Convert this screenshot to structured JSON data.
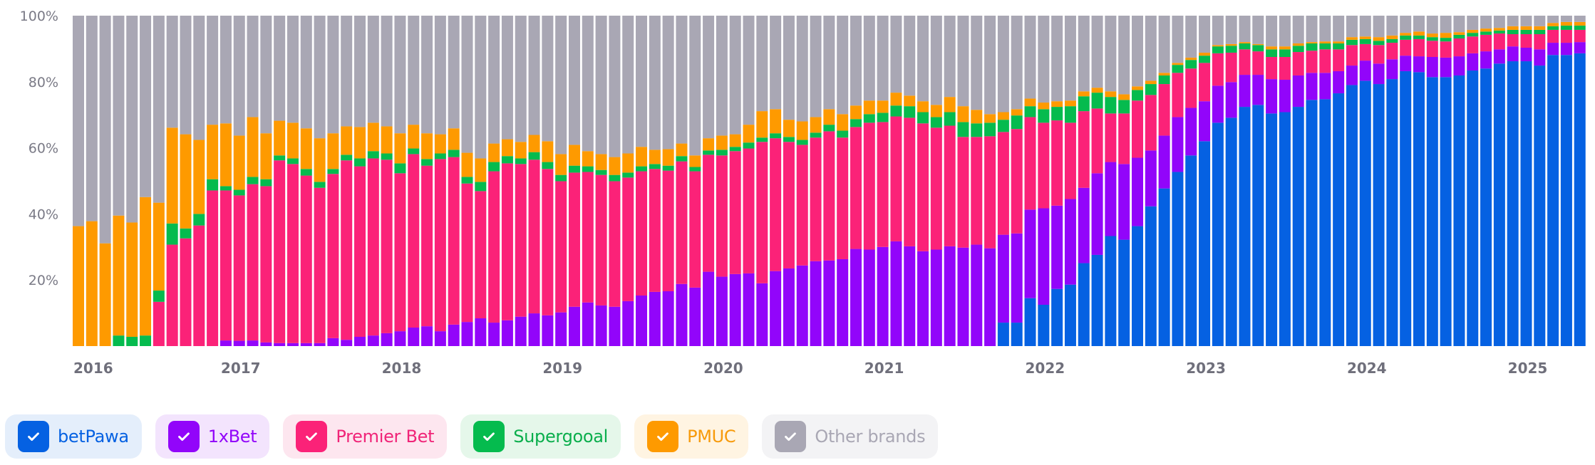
{
  "chart_data": {
    "type": "bar",
    "stacked": true,
    "normalized": true,
    "title": "",
    "xlabel": "",
    "ylabel": "",
    "ylim": [
      0,
      100
    ],
    "grid": false,
    "legend_position": "bottom-left",
    "y_ticks": [
      "20%",
      "40%",
      "60%",
      "80%",
      "100%"
    ],
    "y_tick_values": [
      20,
      40,
      60,
      80,
      100
    ],
    "x_ticks": [
      {
        "label": "2016",
        "index": 0
      },
      {
        "label": "2017",
        "index": 11
      },
      {
        "label": "2018",
        "index": 23
      },
      {
        "label": "2019",
        "index": 35
      },
      {
        "label": "2020",
        "index": 47
      },
      {
        "label": "2021",
        "index": 59
      },
      {
        "label": "2022",
        "index": 71
      },
      {
        "label": "2023",
        "index": 83
      },
      {
        "label": "2024",
        "index": 95
      },
      {
        "label": "2025",
        "index": 107
      }
    ],
    "categories": [
      "2016-02",
      "2016-03",
      "2016-04",
      "2016-05",
      "2016-06",
      "2016-07",
      "2016-08",
      "2016-09",
      "2016-10",
      "2016-11",
      "2016-12",
      "2017-01",
      "2017-02",
      "2017-03",
      "2017-04",
      "2017-05",
      "2017-06",
      "2017-07",
      "2017-08",
      "2017-09",
      "2017-10",
      "2017-11",
      "2017-12",
      "2018-01",
      "2018-02",
      "2018-03",
      "2018-04",
      "2018-05",
      "2018-06",
      "2018-07",
      "2018-08",
      "2018-09",
      "2018-10",
      "2018-11",
      "2018-12",
      "2019-01",
      "2019-02",
      "2019-03",
      "2019-04",
      "2019-05",
      "2019-06",
      "2019-07",
      "2019-08",
      "2019-09",
      "2019-10",
      "2019-11",
      "2019-12",
      "2020-01",
      "2020-02",
      "2020-03",
      "2020-04",
      "2020-05",
      "2020-06",
      "2020-07",
      "2020-08",
      "2020-09",
      "2020-10",
      "2020-11",
      "2020-12",
      "2021-01",
      "2021-02",
      "2021-03",
      "2021-04",
      "2021-05",
      "2021-06",
      "2021-07",
      "2021-08",
      "2021-09",
      "2021-10",
      "2021-11",
      "2021-12",
      "2022-01",
      "2022-02",
      "2022-03",
      "2022-04",
      "2022-05",
      "2022-06",
      "2022-07",
      "2022-08",
      "2022-09",
      "2022-10",
      "2022-11",
      "2022-12",
      "2023-01",
      "2023-02",
      "2023-03",
      "2023-04",
      "2023-05",
      "2023-06",
      "2023-07",
      "2023-08",
      "2023-09",
      "2023-10",
      "2023-11",
      "2023-12",
      "2024-01",
      "2024-02",
      "2024-03",
      "2024-04",
      "2024-05",
      "2024-06",
      "2024-07",
      "2024-08",
      "2024-09",
      "2024-10",
      "2024-11",
      "2024-12",
      "2025-01",
      "2025-02",
      "2025-03",
      "2025-04",
      "2025-05",
      "2025-06"
    ],
    "series": [
      {
        "name": "betPawa",
        "color": "#0561e2",
        "values": [
          0,
          0,
          0,
          0,
          0,
          0,
          0,
          0,
          0,
          0,
          0,
          0,
          0,
          0,
          0,
          0,
          0,
          0,
          0,
          0,
          0,
          0,
          0,
          0,
          0,
          0,
          0,
          0,
          0,
          0,
          0,
          0,
          0,
          0,
          0,
          0,
          0,
          0,
          0,
          0,
          0,
          0,
          0,
          0,
          0,
          0,
          0,
          0,
          0,
          0,
          0,
          0,
          0,
          0,
          0,
          0,
          0,
          0,
          0,
          0,
          0,
          0,
          0,
          0,
          0,
          0,
          0,
          0,
          0,
          7.1,
          7.1,
          14.5,
          12.5,
          17.3,
          18.6,
          25.1,
          27.6,
          33.3,
          32.2,
          36.3,
          42.3,
          47.7,
          52.7,
          57.7,
          62.0,
          67.6,
          69.1,
          72.4,
          73.0,
          70.4,
          70.8,
          72.4,
          74.5,
          74.7,
          76.5,
          79.0,
          80.3,
          79.3,
          80.8,
          83.2,
          82.9,
          81.4,
          81.4,
          81.9,
          83.4,
          84.0,
          85.5,
          86.2,
          86.2,
          84.9,
          88.1,
          88.1,
          88.6
        ]
      },
      {
        "name": "1xBet",
        "color": "#9205fa",
        "values": [
          0,
          0,
          0,
          0,
          0,
          0,
          0,
          0,
          0,
          0,
          0,
          1.7,
          1.6,
          1.7,
          1.1,
          0.9,
          0.9,
          0.9,
          0.9,
          2.4,
          1.9,
          2.8,
          3.2,
          3.9,
          4.5,
          5.6,
          6.0,
          4.5,
          6.5,
          7.3,
          8.4,
          7.1,
          7.8,
          8.9,
          9.9,
          9.3,
          10.2,
          11.9,
          13.2,
          12.3,
          11.9,
          13.6,
          15.3,
          16.4,
          16.6,
          18.8,
          17.7,
          22.5,
          21.0,
          21.8,
          22.0,
          19.0,
          22.7,
          23.5,
          24.4,
          25.7,
          25.9,
          26.3,
          29.4,
          29.2,
          30.0,
          31.7,
          30.2,
          28.7,
          29.2,
          30.2,
          29.8,
          30.7,
          29.6,
          26.6,
          27.0,
          26.8,
          29.2,
          25.2,
          25.9,
          22.8,
          24.7,
          22.4,
          22.9,
          20.7,
          16.9,
          16.0,
          16.6,
          14.4,
          12.1,
          11.2,
          10.8,
          9.7,
          9.1,
          10.4,
          9.8,
          9.5,
          8.2,
          8.0,
          6.7,
          5.9,
          6.1,
          6.2,
          6.0,
          4.7,
          4.8,
          6.1,
          5.9,
          5.8,
          5.2,
          5.2,
          4.3,
          4.5,
          4.1,
          4.9,
          3.7,
          3.7,
          3.4
        ]
      },
      {
        "name": "Premier Bet",
        "color": "#fb2278",
        "values": [
          0,
          0,
          0,
          0,
          0,
          0,
          13.4,
          30.7,
          32.6,
          36.5,
          47.1,
          45.4,
          44.0,
          47.3,
          47.3,
          55.3,
          54.2,
          50.7,
          47.0,
          49.7,
          54.3,
          51.6,
          53.6,
          52.5,
          47.8,
          52.5,
          48.6,
          52.1,
          50.7,
          41.9,
          38.5,
          45.8,
          47.5,
          46.2,
          46.5,
          44.3,
          39.7,
          40.6,
          39.5,
          39.5,
          38.0,
          37.4,
          37.6,
          37.2,
          36.5,
          37.1,
          35.2,
          35.4,
          36.7,
          37.2,
          37.8,
          42.8,
          40.2,
          38.3,
          36.5,
          37.4,
          39.1,
          36.8,
          36.9,
          38.4,
          37.8,
          37.8,
          38.9,
          38.7,
          36.9,
          36.5,
          33.5,
          32.6,
          33.9,
          31.1,
          31.6,
          28.0,
          25.9,
          25.8,
          23.1,
          23.2,
          19.6,
          14.7,
          15.3,
          17.3,
          16.8,
          15.6,
          13.4,
          11.9,
          11.6,
          9.8,
          8.9,
          7.7,
          7.1,
          6.7,
          6.9,
          7.1,
          6.7,
          7.1,
          6.6,
          6.2,
          5.0,
          5.6,
          5.0,
          4.8,
          5.2,
          4.9,
          4.9,
          5.4,
          5.1,
          5.0,
          4.8,
          3.7,
          4.1,
          4.6,
          3.9,
          3.9,
          3.7
        ]
      },
      {
        "name": "Supergooal",
        "color": "#05bb4e",
        "values": [
          0,
          0,
          0,
          3.2,
          2.8,
          3.2,
          3.4,
          6.4,
          3.0,
          3.5,
          3.4,
          1.3,
          1.7,
          2.2,
          2.1,
          1.5,
          1.7,
          2.0,
          1.8,
          1.5,
          1.7,
          2.4,
          2.2,
          1.9,
          3.0,
          1.7,
          2.0,
          1.7,
          2.2,
          2.0,
          2.8,
          2.8,
          2.2,
          1.7,
          2.3,
          2.1,
          1.9,
          2.1,
          1.7,
          1.5,
          1.9,
          1.5,
          1.5,
          1.5,
          1.5,
          1.6,
          1.3,
          1.3,
          1.7,
          1.3,
          1.8,
          1.3,
          1.5,
          1.5,
          1.5,
          1.5,
          2.0,
          2.1,
          2.4,
          2.6,
          2.8,
          3.3,
          3.5,
          3.4,
          3.2,
          4.1,
          4.5,
          4.1,
          4.1,
          3.7,
          4.1,
          3.3,
          4.1,
          4.1,
          5.0,
          4.5,
          4.8,
          5.0,
          4.1,
          3.2,
          3.3,
          2.6,
          2.4,
          2.6,
          2.2,
          2.1,
          2.1,
          1.8,
          1.9,
          2.3,
          2.3,
          1.9,
          2.2,
          1.8,
          1.8,
          1.6,
          1.5,
          1.3,
          1.1,
          1.3,
          1.1,
          1.1,
          1.1,
          1.1,
          1.1,
          1.0,
          0.9,
          1.3,
          1.3,
          1.3,
          1.1,
          1.3,
          1.3
        ]
      },
      {
        "name": "PMUC",
        "color": "#fe9a00",
        "values": [
          36.3,
          37.8,
          31.1,
          36.3,
          34.6,
          41.9,
          26.6,
          29.0,
          28.5,
          22.4,
          16.5,
          19.0,
          16.4,
          18.1,
          13.9,
          10.5,
          10.8,
          12.3,
          13.2,
          10.8,
          8.6,
          9.5,
          8.6,
          8.2,
          9.1,
          7.2,
          7.8,
          5.8,
          6.5,
          7.3,
          7.1,
          5.6,
          5.1,
          5.0,
          5.2,
          6.3,
          6.3,
          6.3,
          4.6,
          4.8,
          5.4,
          5.8,
          5.9,
          4.3,
          5.0,
          3.8,
          3.5,
          3.7,
          4.3,
          3.8,
          5.4,
          8.0,
          7.3,
          5.2,
          5.6,
          4.7,
          4.7,
          5.0,
          4.1,
          4.1,
          3.7,
          3.9,
          3.2,
          3.3,
          3.7,
          4.6,
          4.8,
          4.1,
          2.6,
          2.3,
          1.9,
          2.3,
          2.0,
          1.7,
          1.7,
          1.5,
          1.5,
          1.7,
          1.7,
          1.1,
          1.0,
          0.8,
          0.6,
          0.7,
          0.9,
          0.4,
          0.5,
          0.4,
          0.3,
          0.9,
          0.9,
          0.7,
          0.4,
          0.6,
          0.6,
          0.8,
          0.8,
          1.1,
          1.1,
          0.8,
          1.2,
          1.1,
          1.5,
          0.8,
          0.9,
          0.9,
          0.8,
          1.1,
          1.1,
          1.1,
          1.0,
          1.1,
          1.1
        ]
      },
      {
        "name": "Other brands",
        "color": "#a9a7b4",
        "remainder": true
      }
    ]
  },
  "legend": {
    "items": [
      {
        "label": "betPawa",
        "checked": true,
        "color": "#0561e2",
        "bg": "#e4eefb",
        "text": "#0561e2"
      },
      {
        "label": "1xBet",
        "checked": true,
        "color": "#9205fa",
        "bg": "#f3e4fd",
        "text": "#9205fa"
      },
      {
        "label": "Premier Bet",
        "checked": true,
        "color": "#fb2278",
        "bg": "#fde6ef",
        "text": "#f02478"
      },
      {
        "label": "Supergooal",
        "checked": true,
        "color": "#05bb4e",
        "bg": "#e5f7ea",
        "text": "#0aae4c"
      },
      {
        "label": "PMUC",
        "checked": true,
        "color": "#fe9a00",
        "bg": "#fff4e2",
        "text": "#f79a0b"
      },
      {
        "label": "Other brands",
        "checked": true,
        "color": "#a9a7b4",
        "bg": "#f3f3f5",
        "text": "#a9a7b4"
      }
    ]
  }
}
